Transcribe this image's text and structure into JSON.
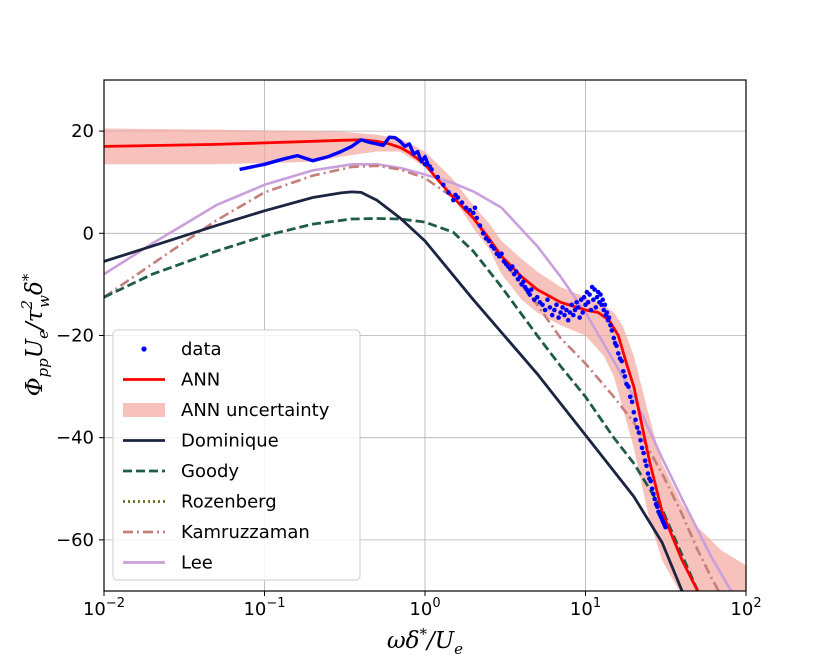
{
  "chart_data": {
    "type": "line",
    "xscale": "log",
    "xlim": [
      0.01,
      100
    ],
    "ylim": [
      -70,
      30
    ],
    "grid": true,
    "xlabel_parts": [
      "ωδ",
      "*",
      "/U",
      "e"
    ],
    "ylabel_parts": [
      "Φ",
      "pp",
      "U",
      "e",
      "/τ",
      "2",
      "w",
      "δ",
      "*"
    ],
    "x_ticks": [
      {
        "value": 0.01,
        "base": "10",
        "exp": "−2"
      },
      {
        "value": 0.1,
        "base": "10",
        "exp": "−1"
      },
      {
        "value": 1,
        "base": "10",
        "exp": "0"
      },
      {
        "value": 10,
        "base": "10",
        "exp": "1"
      },
      {
        "value": 100,
        "base": "10",
        "exp": "2"
      }
    ],
    "y_ticks": [
      {
        "value": 20,
        "label": "20"
      },
      {
        "value": 0,
        "label": "0"
      },
      {
        "value": -20,
        "label": "−20"
      },
      {
        "value": -40,
        "label": "−40"
      },
      {
        "value": -60,
        "label": "−60"
      }
    ],
    "legend_position": "lower-left",
    "legend": [
      {
        "name": "data",
        "style": "dot",
        "color": "#0000ff"
      },
      {
        "name": "ANN",
        "style": "solid",
        "color": "#ff0000"
      },
      {
        "name": "ANN uncertainty",
        "style": "band",
        "color": "#f4a6a0"
      },
      {
        "name": "Dominique",
        "style": "solid",
        "color": "#1b2440"
      },
      {
        "name": "Goody",
        "style": "dashed",
        "color": "#1f5c48"
      },
      {
        "name": "Rozenberg",
        "style": "dotted",
        "color": "#6b6b1a"
      },
      {
        "name": "Kamruzzaman",
        "style": "dashdot",
        "color": "#c47f7b"
      },
      {
        "name": "Lee",
        "style": "solid",
        "color": "#c9a0dc"
      }
    ],
    "series": [
      {
        "key": "lee",
        "style": "solid",
        "color": "#c9a0dc",
        "width": 2.6,
        "x": [
          0.01,
          0.02,
          0.05,
          0.1,
          0.2,
          0.35,
          0.5,
          0.7,
          1.0,
          1.5,
          2.0,
          3.0,
          5.0,
          7.0,
          10,
          15,
          20,
          30,
          40,
          60,
          100
        ],
        "y": [
          -8,
          -2,
          5.5,
          9.5,
          12.3,
          13.5,
          13.5,
          12.8,
          11.5,
          9.8,
          8.2,
          5.0,
          -2.5,
          -8.5,
          -15.5,
          -25,
          -32,
          -44,
          -52,
          -63,
          -75
        ]
      },
      {
        "key": "kamruzzaman",
        "style": "dashdot",
        "color": "#c47f7b",
        "width": 2.6,
        "x": [
          0.01,
          0.02,
          0.05,
          0.1,
          0.2,
          0.35,
          0.5,
          0.7,
          1.0,
          1.5,
          2.0,
          3.0,
          5.0,
          7.0,
          10,
          15,
          20,
          30,
          40,
          50,
          60,
          100
        ],
        "y": [
          -12.5,
          -6,
          2.5,
          8.0,
          11.3,
          13.0,
          13.2,
          12.5,
          10.8,
          7.0,
          3.0,
          -5.0,
          -14,
          -20.5,
          -25.5,
          -32,
          -37,
          -47,
          -55,
          -62,
          -67,
          -80
        ]
      },
      {
        "key": "goody",
        "style": "dashed",
        "color": "#1f5c48",
        "width": 2.8,
        "x": [
          0.01,
          0.02,
          0.05,
          0.1,
          0.2,
          0.35,
          0.5,
          0.7,
          1.0,
          1.5,
          2.0,
          3.0,
          5.0,
          7.0,
          10,
          15,
          20,
          30,
          40,
          50
        ],
        "y": [
          -12.5,
          -8,
          -3.5,
          -0.5,
          1.8,
          2.8,
          2.9,
          2.8,
          2.2,
          0.2,
          -3.5,
          -10.5,
          -20,
          -26,
          -32,
          -40,
          -45,
          -54,
          -63,
          -70
        ]
      },
      {
        "key": "dominique",
        "style": "solid",
        "color": "#1b2440",
        "width": 2.8,
        "x": [
          0.01,
          0.02,
          0.05,
          0.1,
          0.2,
          0.3,
          0.35,
          0.4,
          0.5,
          0.7,
          1.0,
          2.0,
          5.0,
          10,
          20,
          30,
          40
        ],
        "y": [
          -5.5,
          -2.5,
          1.5,
          4.4,
          7.0,
          7.9,
          8.1,
          8.0,
          6.5,
          3.0,
          -1.5,
          -13,
          -27.5,
          -39.5,
          -51.5,
          -60.5,
          -70
        ]
      },
      {
        "key": "ann_upper",
        "style": "none",
        "x": [
          0.01,
          0.05,
          0.2,
          0.3,
          0.5,
          0.7,
          1.0,
          1.5,
          2.0,
          2.5,
          3.0,
          4.0,
          5.0,
          7.0,
          10,
          13,
          15,
          17,
          20,
          25,
          30,
          40,
          50,
          70,
          100
        ],
        "y": [
          20.5,
          20.3,
          20.0,
          19.9,
          19.3,
          18.5,
          16.0,
          10.5,
          5.5,
          2.0,
          -1.5,
          -5.0,
          -7.5,
          -10.5,
          -12.5,
          -14.0,
          -15.5,
          -18.0,
          -24.0,
          -36.0,
          -45.0,
          -53.0,
          -57.5,
          -62.0,
          -65.0
        ]
      },
      {
        "key": "ann_lower",
        "style": "none",
        "x": [
          0.01,
          0.05,
          0.2,
          0.3,
          0.5,
          0.7,
          1.0,
          1.5,
          2.0,
          2.5,
          3.0,
          4.0,
          5.0,
          7.0,
          10,
          13,
          15,
          17,
          20,
          25,
          30,
          40,
          50,
          70,
          100
        ],
        "y": [
          13.5,
          13.5,
          14.0,
          15.0,
          16.0,
          16.0,
          13.0,
          7.0,
          1.0,
          -3.0,
          -8.0,
          -13.0,
          -15.5,
          -18.0,
          -20.0,
          -24.0,
          -28.0,
          -34.0,
          -42.0,
          -56.0,
          -64.0,
          -71.0,
          -75.0,
          -78.0,
          -80.0
        ]
      },
      {
        "key": "ann",
        "style": "solid",
        "color": "#ff0000",
        "width": 2.8,
        "x": [
          0.01,
          0.05,
          0.1,
          0.2,
          0.3,
          0.4,
          0.5,
          0.6,
          0.7,
          0.8,
          1.0,
          1.2,
          1.5,
          2.0,
          2.5,
          3.0,
          4.0,
          5.0,
          7.0,
          10,
          12,
          14,
          16,
          18,
          20,
          25,
          30,
          40,
          50
        ],
        "y": [
          17,
          17.4,
          17.7,
          18.0,
          18.2,
          18.3,
          18.0,
          17.5,
          16.8,
          15.8,
          13.5,
          10.5,
          7.0,
          3.0,
          -1.0,
          -4.5,
          -8.5,
          -11.0,
          -13.5,
          -15.0,
          -15.5,
          -17.0,
          -20.0,
          -25.5,
          -30.0,
          -44.5,
          -54.5,
          -64.0,
          -70.0
        ]
      },
      {
        "key": "data_line",
        "style": "solid",
        "color": "#0000ff",
        "width": 3.4,
        "x": [
          0.07,
          0.1,
          0.13,
          0.16,
          0.2,
          0.25,
          0.3,
          0.35,
          0.4,
          0.45,
          0.5,
          0.55,
          0.6,
          0.65,
          0.7,
          0.75,
          0.8,
          0.85,
          0.9,
          0.95,
          1.0,
          1.05,
          1.1
        ],
        "y": [
          12.5,
          13.5,
          14.5,
          15.2,
          14.2,
          15.0,
          16.0,
          17.0,
          18.3,
          17.8,
          17.5,
          17.2,
          18.8,
          18.7,
          18.0,
          17.0,
          17.5,
          15.5,
          16.0,
          14.0,
          15.0,
          13.3,
          13.0
        ]
      }
    ],
    "scatter": {
      "name": "data",
      "color": "#0000ff",
      "x": [
        1.0,
        1.1,
        1.2,
        1.3,
        1.4,
        1.5,
        1.55,
        1.6,
        1.7,
        1.8,
        1.9,
        2.0,
        2.05,
        2.1,
        2.2,
        2.3,
        2.4,
        2.5,
        2.6,
        2.7,
        2.8,
        2.9,
        3.0,
        3.1,
        3.2,
        3.3,
        3.4,
        3.5,
        3.6,
        3.7,
        3.8,
        3.9,
        4.0,
        4.1,
        4.2,
        4.3,
        4.4,
        4.5,
        4.6,
        4.8,
        5.0,
        5.2,
        5.4,
        5.6,
        5.8,
        6.0,
        6.2,
        6.4,
        6.6,
        6.8,
        7.0,
        7.2,
        7.4,
        7.6,
        7.8,
        8.0,
        8.2,
        8.4,
        8.6,
        8.8,
        9.0,
        9.2,
        9.4,
        9.6,
        9.8,
        10.0,
        10.2,
        10.4,
        10.6,
        10.8,
        11.0,
        11.2,
        11.4,
        11.6,
        11.8,
        12.0,
        12.2,
        12.4,
        12.6,
        12.8,
        13.0,
        13.2,
        13.4,
        13.6,
        13.8,
        14.0,
        14.3,
        14.6,
        15.0,
        15.3,
        15.6,
        16.0,
        16.4,
        16.8,
        17.2,
        17.6,
        18.0,
        18.5,
        19.0,
        19.5,
        20.0,
        20.5,
        21.0,
        21.5,
        22.0,
        22.5,
        23.0,
        23.5,
        24.0,
        24.5,
        25.0,
        25.5,
        26.0,
        26.5,
        27.0,
        27.5,
        28.0,
        28.5,
        29.0,
        29.5,
        30.0,
        30.5,
        31.0,
        31.5
      ],
      "y": [
        13.5,
        12.5,
        11.0,
        9.5,
        8.0,
        6.5,
        7.5,
        7.0,
        6.0,
        5.0,
        4.5,
        4.0,
        5.0,
        3.0,
        1.5,
        0.0,
        -1.0,
        -1.5,
        -2.5,
        -3.0,
        -4.0,
        -4.5,
        -4.0,
        -5.5,
        -6.0,
        -6.5,
        -7.0,
        -6.5,
        -8.0,
        -7.5,
        -9.0,
        -8.5,
        -10.0,
        -9.5,
        -10.5,
        -11.0,
        -11.5,
        -12.0,
        -11.0,
        -13.0,
        -12.5,
        -13.5,
        -14.0,
        -15.0,
        -13.0,
        -14.5,
        -16.0,
        -15.0,
        -14.0,
        -16.5,
        -15.5,
        -14.5,
        -16.0,
        -15.0,
        -17.0,
        -15.5,
        -14.0,
        -16.0,
        -15.0,
        -13.5,
        -14.5,
        -16.5,
        -13.0,
        -15.5,
        -12.5,
        -14.0,
        -11.5,
        -13.5,
        -12.0,
        -15.0,
        -10.5,
        -13.0,
        -11.0,
        -14.5,
        -12.5,
        -11.5,
        -13.5,
        -12.0,
        -14.0,
        -13.0,
        -15.0,
        -14.0,
        -16.0,
        -15.5,
        -17.0,
        -16.5,
        -18.0,
        -19.0,
        -20.5,
        -21.5,
        -22.0,
        -23.5,
        -24.5,
        -25.0,
        -27.0,
        -28.0,
        -29.5,
        -30.0,
        -32.0,
        -33.0,
        -35.0,
        -36.5,
        -38.0,
        -39.0,
        -40.5,
        -42.0,
        -43.0,
        -44.5,
        -45.5,
        -47.0,
        -48.0,
        -48.5,
        -50.0,
        -51.0,
        -52.0,
        -53.0,
        -53.5,
        -54.5,
        -55.0,
        -55.5,
        -56.0,
        -56.5,
        -57.0,
        -57.5
      ]
    }
  }
}
